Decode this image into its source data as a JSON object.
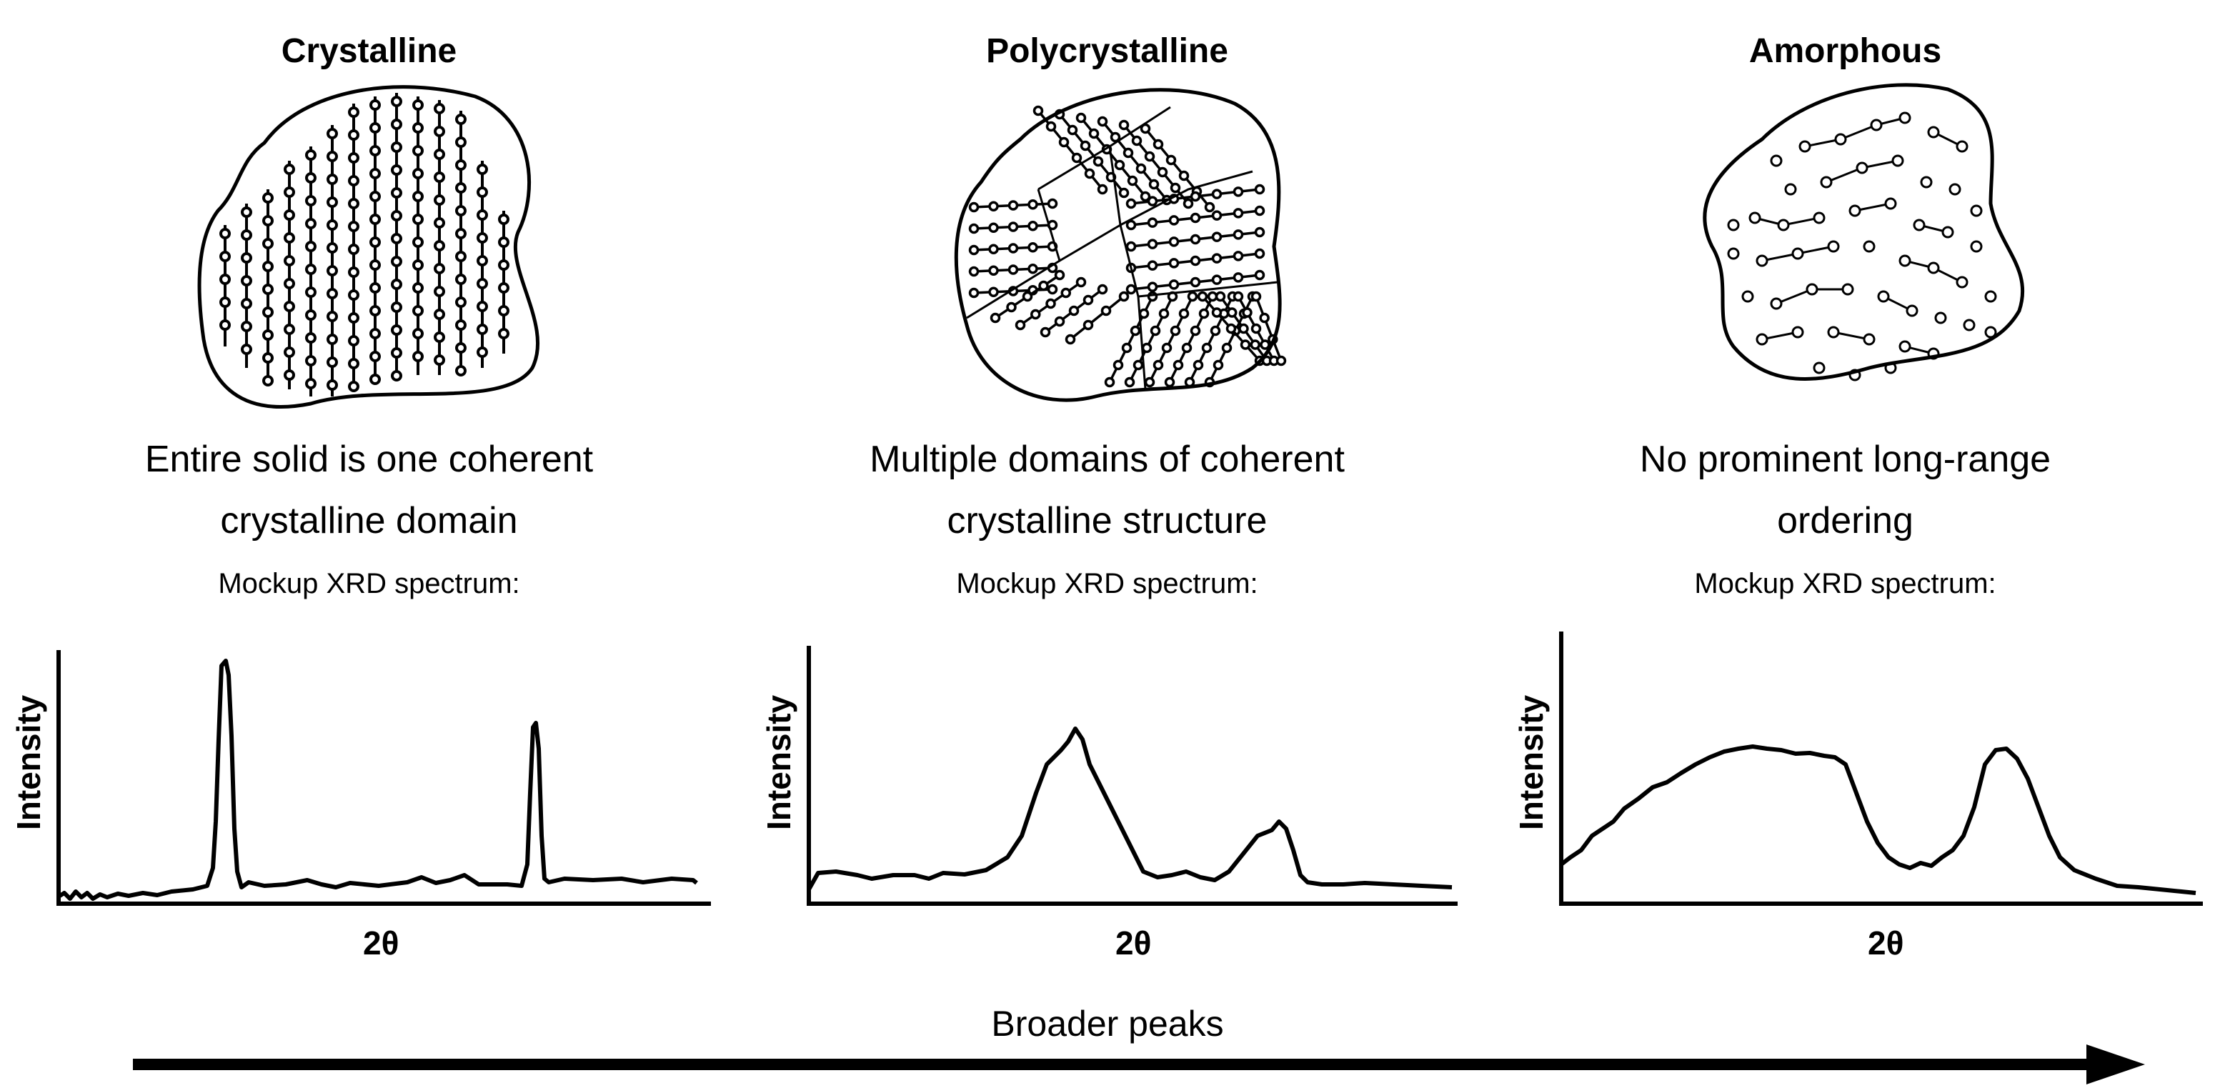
{
  "panels": [
    {
      "title": "Crystalline",
      "description_line1": "Entire solid is one coherent",
      "description_line2": "crystalline domain",
      "mockup_label": "Mockup XRD spectrum:",
      "ylabel": "Intensity",
      "xlabel": "2θ"
    },
    {
      "title": "Polycrystalline",
      "description_line1": "Multiple domains of coherent",
      "description_line2": "crystalline structure",
      "mockup_label": "Mockup XRD spectrum:",
      "ylabel": "Intensity",
      "xlabel": "2θ"
    },
    {
      "title": "Amorphous",
      "description_line1": "No prominent long-range",
      "description_line2": "ordering",
      "mockup_label": "Mockup XRD spectrum:",
      "ylabel": "Intensity",
      "xlabel": "2θ"
    }
  ],
  "arrow_label": "Broader peaks"
}
